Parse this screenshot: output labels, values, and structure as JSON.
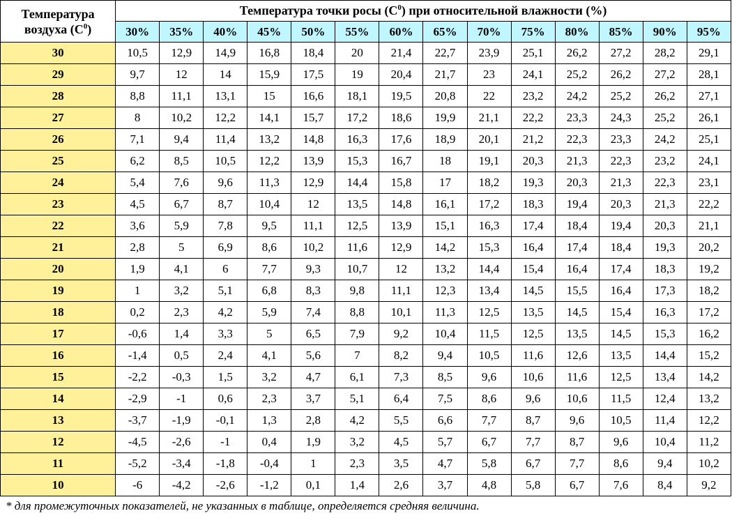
{
  "table": {
    "corner_label_line1": "Температура",
    "corner_label_line2": "воздуха (C",
    "corner_label_sup": "0",
    "corner_label_end": ")",
    "title_main": "Температура точки росы (C",
    "title_sup": "0",
    "title_rest": ") при относительной влажности (%)",
    "humidity_columns": [
      "30%",
      "35%",
      "40%",
      "45%",
      "50%",
      "55%",
      "60%",
      "65%",
      "70%",
      "75%",
      "80%",
      "85%",
      "90%",
      "95%"
    ],
    "rows": [
      {
        "temp": "30",
        "values": [
          "10,5",
          "12,9",
          "14,9",
          "16,8",
          "18,4",
          "20",
          "21,4",
          "22,7",
          "23,9",
          "25,1",
          "26,2",
          "27,2",
          "28,2",
          "29,1"
        ]
      },
      {
        "temp": "29",
        "values": [
          "9,7",
          "12",
          "14",
          "15,9",
          "17,5",
          "19",
          "20,4",
          "21,7",
          "23",
          "24,1",
          "25,2",
          "26,2",
          "27,2",
          "28,1"
        ]
      },
      {
        "temp": "28",
        "values": [
          "8,8",
          "11,1",
          "13,1",
          "15",
          "16,6",
          "18,1",
          "19,5",
          "20,8",
          "22",
          "23,2",
          "24,2",
          "25,2",
          "26,2",
          "27,1"
        ]
      },
      {
        "temp": "27",
        "values": [
          "8",
          "10,2",
          "12,2",
          "14,1",
          "15,7",
          "17,2",
          "18,6",
          "19,9",
          "21,1",
          "22,2",
          "23,3",
          "24,3",
          "25,2",
          "26,1"
        ]
      },
      {
        "temp": "26",
        "values": [
          "7,1",
          "9,4",
          "11,4",
          "13,2",
          "14,8",
          "16,3",
          "17,6",
          "18,9",
          "20,1",
          "21,2",
          "22,3",
          "23,3",
          "24,2",
          "25,1"
        ]
      },
      {
        "temp": "25",
        "values": [
          "6,2",
          "8,5",
          "10,5",
          "12,2",
          "13,9",
          "15,3",
          "16,7",
          "18",
          "19,1",
          "20,3",
          "21,3",
          "22,3",
          "23,2",
          "24,1"
        ]
      },
      {
        "temp": "24",
        "values": [
          "5,4",
          "7,6",
          "9,6",
          "11,3",
          "12,9",
          "14,4",
          "15,8",
          "17",
          "18,2",
          "19,3",
          "20,3",
          "21,3",
          "22,3",
          "23,1"
        ]
      },
      {
        "temp": "23",
        "values": [
          "4,5",
          "6,7",
          "8,7",
          "10,4",
          "12",
          "13,5",
          "14,8",
          "16,1",
          "17,2",
          "18,3",
          "19,4",
          "20,3",
          "21,3",
          "22,2"
        ]
      },
      {
        "temp": "22",
        "values": [
          "3,6",
          "5,9",
          "7,8",
          "9,5",
          "11,1",
          "12,5",
          "13,9",
          "15,1",
          "16,3",
          "17,4",
          "18,4",
          "19,4",
          "20,3",
          "21,1"
        ]
      },
      {
        "temp": "21",
        "values": [
          "2,8",
          "5",
          "6,9",
          "8,6",
          "10,2",
          "11,6",
          "12,9",
          "14,2",
          "15,3",
          "16,4",
          "17,4",
          "18,4",
          "19,3",
          "20,2"
        ]
      },
      {
        "temp": "20",
        "values": [
          "1,9",
          "4,1",
          "6",
          "7,7",
          "9,3",
          "10,7",
          "12",
          "13,2",
          "14,4",
          "15,4",
          "16,4",
          "17,4",
          "18,3",
          "19,2"
        ]
      },
      {
        "temp": "19",
        "values": [
          "1",
          "3,2",
          "5,1",
          "6,8",
          "8,3",
          "9,8",
          "11,1",
          "12,3",
          "13,4",
          "14,5",
          "15,5",
          "16,4",
          "17,3",
          "18,2"
        ]
      },
      {
        "temp": "18",
        "values": [
          "0,2",
          "2,3",
          "4,2",
          "5,9",
          "7,4",
          "8,8",
          "10,1",
          "11,3",
          "12,5",
          "13,5",
          "14,5",
          "15,4",
          "16,3",
          "17,2"
        ]
      },
      {
        "temp": "17",
        "values": [
          "-0,6",
          "1,4",
          "3,3",
          "5",
          "6,5",
          "7,9",
          "9,2",
          "10,4",
          "11,5",
          "12,5",
          "13,5",
          "14,5",
          "15,3",
          "16,2"
        ]
      },
      {
        "temp": "16",
        "values": [
          "-1,4",
          "0,5",
          "2,4",
          "4,1",
          "5,6",
          "7",
          "8,2",
          "9,4",
          "10,5",
          "11,6",
          "12,6",
          "13,5",
          "14,4",
          "15,2"
        ]
      },
      {
        "temp": "15",
        "values": [
          "-2,2",
          "-0,3",
          "1,5",
          "3,2",
          "4,7",
          "6,1",
          "7,3",
          "8,5",
          "9,6",
          "10,6",
          "11,6",
          "12,5",
          "13,4",
          "14,2"
        ]
      },
      {
        "temp": "14",
        "values": [
          "-2,9",
          "-1",
          "0,6",
          "2,3",
          "3,7",
          "5,1",
          "6,4",
          "7,5",
          "8,6",
          "9,6",
          "10,6",
          "11,5",
          "12,4",
          "13,2"
        ]
      },
      {
        "temp": "13",
        "values": [
          "-3,7",
          "-1,9",
          "-0,1",
          "1,3",
          "2,8",
          "4,2",
          "5,5",
          "6,6",
          "7,7",
          "8,7",
          "9,6",
          "10,5",
          "11,4",
          "12,2"
        ]
      },
      {
        "temp": "12",
        "values": [
          "-4,5",
          "-2,6",
          "-1",
          "0,4",
          "1,9",
          "3,2",
          "4,5",
          "5,7",
          "6,7",
          "7,7",
          "8,7",
          "9,6",
          "10,4",
          "11,2"
        ]
      },
      {
        "temp": "11",
        "values": [
          "-5,2",
          "-3,4",
          "-1,8",
          "-0,4",
          "1",
          "2,3",
          "3,5",
          "4,7",
          "5,8",
          "6,7",
          "7,7",
          "8,6",
          "9,4",
          "10,2"
        ]
      },
      {
        "temp": "10",
        "values": [
          "-6",
          "-4,2",
          "-2,6",
          "-1,2",
          "0,1",
          "1,4",
          "2,6",
          "3,7",
          "4,8",
          "5,8",
          "6,7",
          "7,6",
          "8,4",
          "9,2"
        ]
      }
    ]
  },
  "footnote": "* для промежуточных показателей, не указанных в таблице, определяется средняя величина.",
  "colors": {
    "humidity_header_bg": "#bff6ff",
    "temperature_column_bg": "#fff09a",
    "border": "#000000"
  }
}
